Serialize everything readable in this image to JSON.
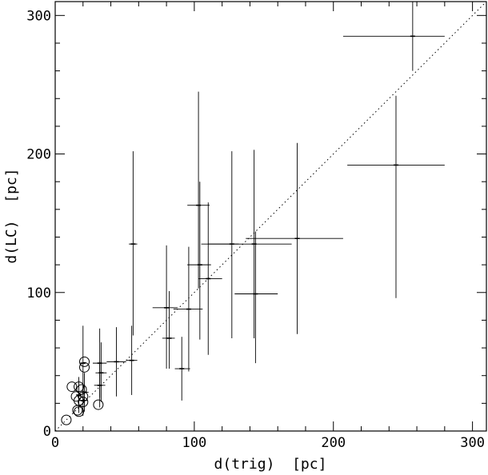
{
  "chart_data": {
    "type": "scatter",
    "xlabel": "d(trig)  [pc]",
    "ylabel": "d(LC)  [pc]",
    "xlim": [
      0,
      310
    ],
    "ylim": [
      0,
      310
    ],
    "x_ticks": [
      0,
      100,
      200,
      300
    ],
    "y_ticks": [
      0,
      100,
      200,
      300
    ],
    "reference_line": {
      "style": "dotted",
      "from": [
        0,
        0
      ],
      "to": [
        310,
        310
      ]
    },
    "grid": false,
    "series": [
      {
        "marker": "cross",
        "points": [
          {
            "x": 257,
            "y": 285,
            "xerr": [
              50,
              23
            ],
            "yerr": [
              25,
              25
            ]
          },
          {
            "x": 245,
            "y": 192,
            "xerr": [
              35,
              35
            ],
            "yerr": [
              96,
              50
            ]
          },
          {
            "x": 174,
            "y": 139,
            "xerr": [
              37,
              33
            ],
            "yerr": [
              69,
              69
            ]
          },
          {
            "x": 143,
            "y": 135,
            "xerr": [
              38,
              27
            ],
            "yerr": [
              68,
              68
            ]
          },
          {
            "x": 144,
            "y": 99,
            "xerr": [
              15,
              16
            ],
            "yerr": [
              50,
              45
            ]
          },
          {
            "x": 127,
            "y": 135,
            "xerr": [
              17,
              5
            ],
            "yerr": [
              68,
              67
            ]
          },
          {
            "x": 103,
            "y": 163,
            "xerr": [
              8,
              8
            ],
            "yerr": [
              60,
              82
            ]
          },
          {
            "x": 104,
            "y": 120,
            "xerr": [
              9,
              8
            ],
            "yerr": [
              54,
              60
            ]
          },
          {
            "x": 110,
            "y": 110,
            "xerr": [
              7,
              10
            ],
            "yerr": [
              55,
              55
            ]
          },
          {
            "x": 56,
            "y": 135,
            "xerr": [
              3,
              3
            ],
            "yerr": [
              66,
              67
            ]
          },
          {
            "x": 80,
            "y": 89,
            "xerr": [
              10,
              8
            ],
            "yerr": [
              44,
              45
            ]
          },
          {
            "x": 96,
            "y": 88,
            "xerr": [
              11,
              10
            ],
            "yerr": [
              45,
              45
            ]
          },
          {
            "x": 82,
            "y": 67,
            "xerr": [
              5,
              4
            ],
            "yerr": [
              22,
              34
            ]
          },
          {
            "x": 91,
            "y": 45,
            "xerr": [
              5,
              6
            ],
            "yerr": [
              23,
              23
            ]
          },
          {
            "x": 55,
            "y": 51,
            "xerr": [
              4,
              4
            ],
            "yerr": [
              25,
              25
            ]
          },
          {
            "x": 44,
            "y": 50,
            "xerr": [
              7,
              7
            ],
            "yerr": [
              25,
              25
            ]
          },
          {
            "x": 32,
            "y": 49,
            "xerr": [
              5,
              5
            ],
            "yerr": [
              25,
              25
            ]
          },
          {
            "x": 33,
            "y": 42,
            "xerr": [
              4,
              4
            ],
            "yerr": [
              21,
              22
            ]
          },
          {
            "x": 32,
            "y": 33,
            "xerr": [
              4,
              4
            ],
            "yerr": [
              16,
              17
            ]
          },
          {
            "x": 20,
            "y": 49,
            "xerr": [
              2,
              2
            ],
            "yerr": [
              27,
              27
            ]
          },
          {
            "x": 21,
            "y": 28,
            "xerr": [
              3,
              3
            ],
            "yerr": [
              14,
              14
            ]
          },
          {
            "x": 20,
            "y": 22,
            "xerr": [
              3,
              3
            ],
            "yerr": [
              11,
              11
            ]
          },
          {
            "x": 17,
            "y": 26,
            "xerr": [
              2,
              2
            ],
            "yerr": [
              13,
              13
            ]
          }
        ]
      },
      {
        "marker": "open-circle",
        "points": [
          {
            "x": 8,
            "y": 8
          },
          {
            "x": 12,
            "y": 32
          },
          {
            "x": 15,
            "y": 25
          },
          {
            "x": 16,
            "y": 15
          },
          {
            "x": 17,
            "y": 32
          },
          {
            "x": 17,
            "y": 22
          },
          {
            "x": 17,
            "y": 14
          },
          {
            "x": 19,
            "y": 30
          },
          {
            "x": 20,
            "y": 25
          },
          {
            "x": 20,
            "y": 21
          },
          {
            "x": 21,
            "y": 50
          },
          {
            "x": 21,
            "y": 46
          },
          {
            "x": 31,
            "y": 19
          }
        ]
      }
    ]
  }
}
